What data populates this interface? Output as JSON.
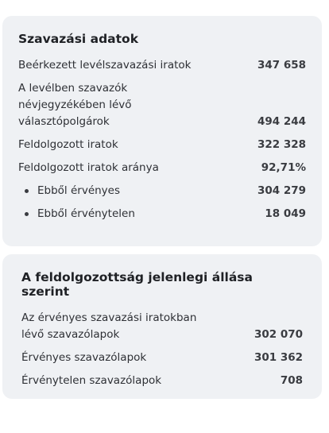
{
  "cards": [
    {
      "title": "Szavazási adatok",
      "rows": [
        {
          "label": [
            "Beérkezett levélszavazási iratok"
          ],
          "value": "347 658"
        },
        {
          "label": [
            "A levélben szavazók",
            "névjegyzékében lévő",
            "választópolgárok"
          ],
          "value": "494 244"
        },
        {
          "label": [
            "Feldolgozott iratok"
          ],
          "value": "322 328"
        },
        {
          "label": [
            "Feldolgozott iratok aránya"
          ],
          "value": "92,71%"
        },
        {
          "label": [
            "Ebből érvényes"
          ],
          "value": "304 279",
          "bullet": true
        },
        {
          "label": [
            "Ebből érvénytelen"
          ],
          "value": "18 049",
          "bullet": true
        }
      ]
    },
    {
      "title": "A feldolgozottság jelenlegi állása szerint",
      "rows": [
        {
          "label": [
            "Az érvényes szavazási iratokban",
            "lévő szavazólapok"
          ],
          "value": "302 070"
        },
        {
          "label": [
            "Érvényes szavazólapok"
          ],
          "value": "301 362"
        },
        {
          "label": [
            "Érvénytelen szavazólapok"
          ],
          "value": "708"
        }
      ]
    }
  ]
}
